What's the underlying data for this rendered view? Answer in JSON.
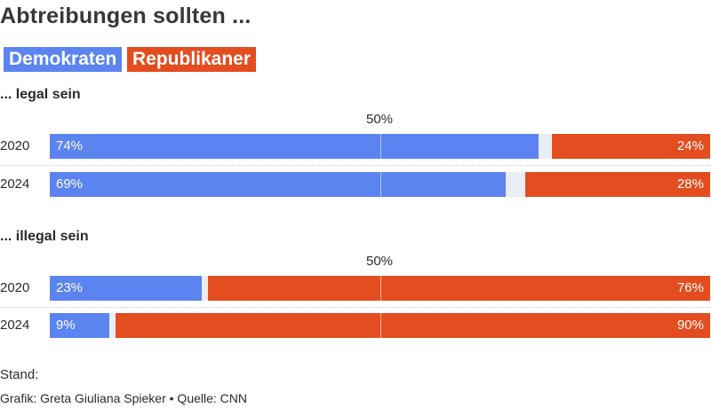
{
  "title": "Abtreibungen sollten ...",
  "legend": [
    {
      "label": "Demokraten",
      "color": "#5b84f1"
    },
    {
      "label": "Republikaner",
      "color": "#e34d1f"
    }
  ],
  "colors": {
    "dem": "#5b84f1",
    "rep": "#e34d1f",
    "track": "#e9eef3"
  },
  "sections": [
    {
      "label": "... legal sein",
      "midpoint_label": "50%",
      "rows": [
        {
          "year": "2020",
          "dem": 74,
          "dem_label": "74%",
          "rep": 24,
          "rep_label": "24%"
        },
        {
          "year": "2024",
          "dem": 69,
          "dem_label": "69%",
          "rep": 28,
          "rep_label": "28%"
        }
      ]
    },
    {
      "label": "... illegal sein",
      "midpoint_label": "50%",
      "rows": [
        {
          "year": "2020",
          "dem": 23,
          "dem_label": "23%",
          "rep": 76,
          "rep_label": "76%"
        },
        {
          "year": "2024",
          "dem": 9,
          "dem_label": "9%",
          "rep": 90,
          "rep_label": "90%"
        }
      ]
    }
  ],
  "footer": {
    "stand": "Stand:",
    "credit": "Grafik: Greta Giuliana Spieker • Quelle: CNN"
  },
  "chart_data": {
    "type": "bar",
    "title": "Abtreibungen sollten ...",
    "orientation": "horizontal-stacked-diverging",
    "xlim": [
      0,
      100
    ],
    "legend_position": "top-left",
    "groups": [
      {
        "label": "... legal sein",
        "categories": [
          "2020",
          "2024"
        ],
        "series": [
          {
            "name": "Demokraten",
            "values": [
              74,
              69
            ]
          },
          {
            "name": "Republikaner",
            "values": [
              24,
              28
            ]
          }
        ]
      },
      {
        "label": "... illegal sein",
        "categories": [
          "2020",
          "2024"
        ],
        "series": [
          {
            "name": "Demokraten",
            "values": [
              23,
              9
            ]
          },
          {
            "name": "Republikaner",
            "values": [
              76,
              90
            ]
          }
        ]
      }
    ],
    "reference_line": {
      "value": 50,
      "label": "50%"
    }
  }
}
